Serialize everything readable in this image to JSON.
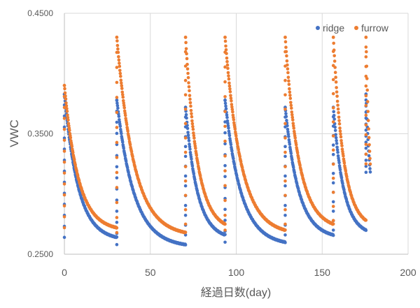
{
  "chart_data": {
    "type": "scatter",
    "xlabel": "経過日数(day)",
    "ylabel": "VWC",
    "xlim": [
      0,
      200
    ],
    "ylim": [
      0.25,
      0.45
    ],
    "x_ticks": [
      "0",
      "50",
      "100",
      "150",
      "200"
    ],
    "y_ticks": [
      "0.2500",
      "0.3500",
      "0.4500"
    ],
    "grid": true,
    "legend_position": "top-right",
    "colors": {
      "ridge": "#4472C4",
      "furrow": "#ED7D31",
      "grid": "#d9d9d9",
      "axis": "#bfbfbf",
      "text": "#595959"
    },
    "series": [
      {
        "name": "ridge",
        "segments": [
          {
            "x_start": 0,
            "x_end": 30.5,
            "y_start": 0.383,
            "y_end": 0.264,
            "k": 3.8
          },
          {
            "x_start": 30.5,
            "x_end": 70.5,
            "y_start": 0.378,
            "y_end": 0.258,
            "k": 4.0
          },
          {
            "x_start": 70.5,
            "x_end": 93.5,
            "y_start": 0.372,
            "y_end": 0.266,
            "k": 3.4
          },
          {
            "x_start": 93.5,
            "x_end": 128.5,
            "y_start": 0.378,
            "y_end": 0.26,
            "k": 3.8
          },
          {
            "x_start": 128.5,
            "x_end": 156.5,
            "y_start": 0.372,
            "y_end": 0.266,
            "k": 3.6
          },
          {
            "x_start": 156.5,
            "x_end": 175.5,
            "y_start": 0.372,
            "y_end": 0.27,
            "k": 3.2
          },
          {
            "x_start": 175.5,
            "x_end": 178,
            "y_start": 0.383,
            "y_end": 0.318,
            "k": 1.0
          }
        ]
      },
      {
        "name": "furrow",
        "segments": [
          {
            "x_start": 0,
            "x_end": 30.5,
            "y_start": 0.39,
            "y_end": 0.272,
            "k": 3.8
          },
          {
            "x_start": 30.5,
            "x_end": 70.5,
            "y_start": 0.43,
            "y_end": 0.268,
            "k": 4.0
          },
          {
            "x_start": 70.5,
            "x_end": 93.5,
            "y_start": 0.43,
            "y_end": 0.275,
            "k": 3.4
          },
          {
            "x_start": 93.5,
            "x_end": 128.5,
            "y_start": 0.43,
            "y_end": 0.27,
            "k": 3.8
          },
          {
            "x_start": 128.5,
            "x_end": 156.5,
            "y_start": 0.43,
            "y_end": 0.275,
            "k": 3.6
          },
          {
            "x_start": 156.5,
            "x_end": 175.5,
            "y_start": 0.43,
            "y_end": 0.278,
            "k": 3.2
          },
          {
            "x_start": 175.5,
            "x_end": 178,
            "y_start": 0.43,
            "y_end": 0.325,
            "k": 1.0
          }
        ]
      }
    ]
  }
}
